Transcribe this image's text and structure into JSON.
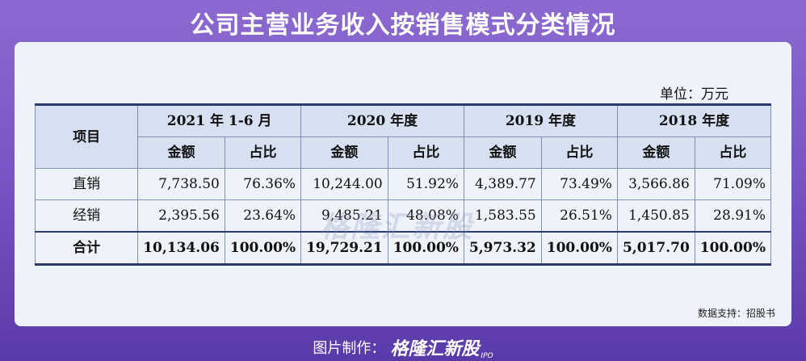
{
  "title": "公司主营业务收入按销售模式分类情况",
  "unit": "单位：万元",
  "table": {
    "item_header": "项目",
    "periods": [
      "2021 年 1-6 月",
      "2020 年度",
      "2019 年度",
      "2018 年度"
    ],
    "sub_headers": [
      "金额",
      "占比"
    ],
    "rows": [
      {
        "label": "直销",
        "cells": [
          "7,738.50",
          "76.36%",
          "10,244.00",
          "51.92%",
          "4,389.77",
          "73.49%",
          "3,566.86",
          "71.09%"
        ]
      },
      {
        "label": "经销",
        "cells": [
          "2,395.56",
          "23.64%",
          "9,485.21",
          "48.08%",
          "1,583.55",
          "26.51%",
          "1,450.85",
          "28.91%"
        ]
      },
      {
        "label": "合计",
        "cells": [
          "10,134.06",
          "100.00%",
          "19,729.21",
          "100.00%",
          "5,973.32",
          "100.00%",
          "5,017.70",
          "100.00%"
        ]
      }
    ]
  },
  "watermark": "格隆汇新股",
  "source": "数据支持：招股书",
  "footer": {
    "label": "图片制作：",
    "brand": "格隆汇新股",
    "brand_suffix": "IPO"
  }
}
